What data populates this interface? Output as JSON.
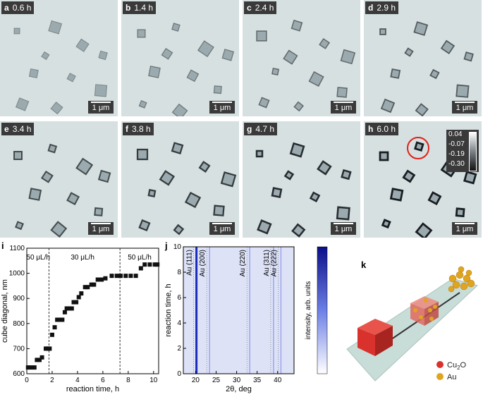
{
  "panels": [
    {
      "letter": "a",
      "time": "0.6 h"
    },
    {
      "letter": "b",
      "time": "1.4 h"
    },
    {
      "letter": "c",
      "time": "2.4 h"
    },
    {
      "letter": "d",
      "time": "2.9 h"
    },
    {
      "letter": "e",
      "time": "3.4 h"
    },
    {
      "letter": "f",
      "time": "3.8 h"
    },
    {
      "letter": "g",
      "time": "4.7 h"
    },
    {
      "letter": "h",
      "time": "6.0 h"
    }
  ],
  "scale_label": "1 μm",
  "colorbar": {
    "ticks": [
      "0.04",
      "-0.07",
      "-0.19",
      "-0.30"
    ]
  },
  "chart_data": [
    {
      "panel": "i",
      "type": "scatter",
      "xlabel": "reaction time, h",
      "ylabel": "cube diagonal, nm",
      "xlim": [
        0,
        10.4
      ],
      "ylim": [
        600,
        1100
      ],
      "xticks": [
        0,
        2,
        4,
        6,
        8,
        10
      ],
      "yticks": [
        600,
        700,
        800,
        900,
        1000,
        1100
      ],
      "annotations": [
        {
          "text": "50 μL/h",
          "x": 0.9
        },
        {
          "text": "30 μL/h",
          "x": 4.4
        },
        {
          "text": "50 μL/h",
          "x": 8.9
        }
      ],
      "vlines": [
        1.75,
        7.35
      ],
      "x": [
        0.1,
        0.3,
        0.6,
        0.8,
        1.0,
        1.2,
        1.5,
        1.65,
        1.8,
        2.0,
        2.2,
        2.4,
        2.6,
        2.8,
        3.0,
        3.15,
        3.35,
        3.55,
        3.7,
        3.9,
        4.1,
        4.3,
        4.6,
        4.8,
        5.1,
        5.3,
        5.6,
        5.9,
        6.2,
        6.7,
        7.1,
        7.4,
        7.8,
        8.2,
        8.6,
        9.0,
        9.3,
        9.7,
        10.1,
        10.3
      ],
      "y": [
        625,
        625,
        625,
        655,
        655,
        665,
        700,
        700,
        700,
        755,
        785,
        815,
        815,
        815,
        845,
        860,
        860,
        860,
        885,
        885,
        905,
        920,
        945,
        945,
        955,
        955,
        975,
        975,
        980,
        990,
        990,
        990,
        990,
        990,
        990,
        1020,
        1035,
        1035,
        1035,
        1035
      ]
    },
    {
      "panel": "j",
      "type": "heatmap",
      "xlabel": "2θ, deg",
      "ylabel": "reaction time, h",
      "colorbar_label": "intensity, arb. units",
      "xlim": [
        17,
        44
      ],
      "ylim": [
        0,
        10
      ],
      "xticks": [
        20,
        25,
        30,
        35,
        40
      ],
      "yticks": [
        0,
        2,
        4,
        6,
        8,
        10
      ],
      "peaks": [
        {
          "label": "Au (111)",
          "x": 20.2
        },
        {
          "label": "Au (200)",
          "x": 23.4
        },
        {
          "label": "Au (220)",
          "x": 33.2
        },
        {
          "label": "Au (311)",
          "x": 39.0
        },
        {
          "label": "Au (222)",
          "x": 40.8
        }
      ]
    }
  ],
  "panel_k": {
    "letter": "k",
    "legend": [
      {
        "label": "Cu",
        "sub": "2",
        "tail": "O",
        "color": "#d9322d"
      },
      {
        "label": "Au",
        "color": "#e0a520"
      }
    ]
  },
  "letters": {
    "i": "i",
    "j": "j"
  }
}
